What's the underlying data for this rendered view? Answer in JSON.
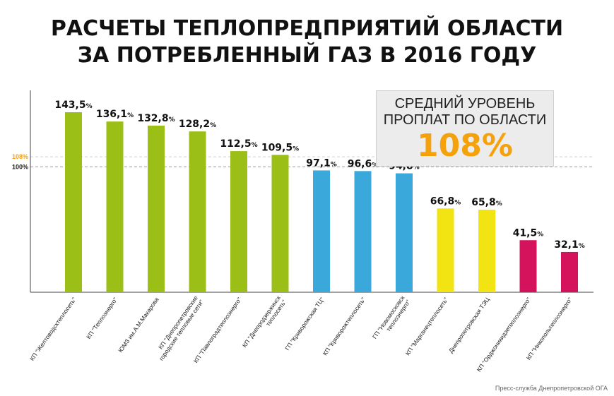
{
  "title": {
    "line1": "РАСЧЕТЫ ТЕПЛОПРЕДПРИЯТИЙ ОБЛАСТИ",
    "line2": "ЗА ПОТРЕБЛЕННЫЙ ГАЗ В 2016 ГОДУ"
  },
  "infobox": {
    "line1": "СРЕДНИЙ УРОВЕНЬ",
    "line2": "ПРОПЛАТ ПО ОБЛАСТИ",
    "value": "108%"
  },
  "footer": "Пресс-служба Днепропетровской ОГА",
  "chart_data": {
    "type": "bar",
    "title": "РАСЧЕТЫ ТЕПЛОПРЕДПРИЯТИЙ ОБЛАСТИ ЗА ПОТРЕБЛЕННЫЙ ГАЗ В 2016 ГОДУ",
    "xlabel": "",
    "ylabel": "",
    "ylim": [
      0,
      150
    ],
    "grid": false,
    "reference_lines": [
      {
        "value": 108,
        "label": "108%",
        "color": "#f5a10c"
      },
      {
        "value": 100,
        "label": "100%",
        "color": "#222222"
      }
    ],
    "categories": [
      [
        "КП \"Желтоводсктеплосеть\""
      ],
      [
        "КП \"Теплоэнерго\""
      ],
      [
        "ЮМЗ им.А.М.Макарова"
      ],
      [
        "КП \"Днепропетровские",
        "городские тепловые сети\""
      ],
      [
        "КП \"Павлоградтеплоэнерго\""
      ],
      [
        "КП \"Днепродзержинск",
        "теплосеть\""
      ],
      [
        "ГП \"Криворожская ТЦ\""
      ],
      [
        "КП \"Криворожтеплосеть\""
      ],
      [
        "ГП \"Новомосковск",
        "теплоэнерго\""
      ],
      [
        "КП \"Марганецтеплосеть\""
      ],
      [
        "Днепропетровская ТЭЦ"
      ],
      [
        "КП \"Орджоникидзетеплоэнерго\""
      ],
      [
        "КП \"Никопольтеплоэнерго\""
      ]
    ],
    "values": [
      143.5,
      136.1,
      132.8,
      128.2,
      112.5,
      109.5,
      97.1,
      96.6,
      94.8,
      66.8,
      65.8,
      41.5,
      32.1
    ],
    "value_labels": [
      "143,5",
      "136,1",
      "132,8",
      "128,2",
      "112,5",
      "109,5",
      "97,1",
      "96,6",
      "94,8",
      "66,8",
      "65,8",
      "41,5",
      "32,1"
    ],
    "unit_suffix": "%",
    "colors": [
      "#9bbf16",
      "#9bbf16",
      "#9bbf16",
      "#9bbf16",
      "#9bbf16",
      "#9bbf16",
      "#3aa8da",
      "#3aa8da",
      "#3aa8da",
      "#f2e313",
      "#f2e313",
      "#d5135c",
      "#d5135c"
    ]
  }
}
